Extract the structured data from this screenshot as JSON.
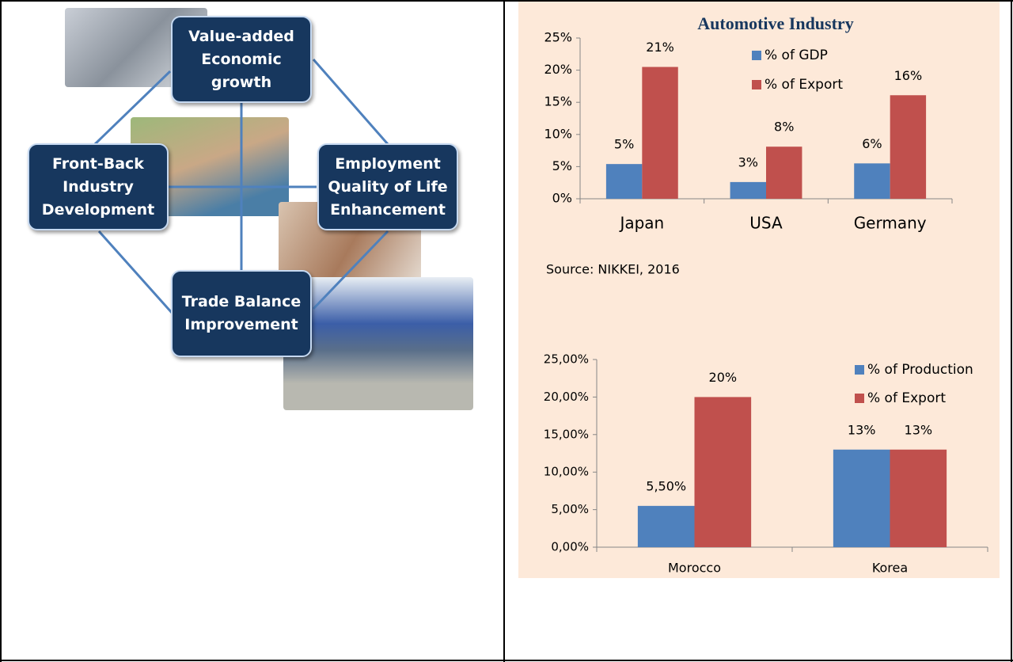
{
  "diagram": {
    "nodes": [
      {
        "lines": [
          "Value-added",
          "Economic",
          "growth"
        ]
      },
      {
        "lines": [
          "Front-Back",
          "Industry",
          "Development"
        ]
      },
      {
        "lines": [
          "Employment",
          "Quality of Life",
          "Enhancement"
        ]
      },
      {
        "lines": [
          "Trade Balance",
          "Improvement"
        ]
      }
    ]
  },
  "chart_data": [
    {
      "type": "bar",
      "title": "Automotive Industry",
      "categories": [
        "Japan",
        "USA",
        "Germany"
      ],
      "series": [
        {
          "name": "% of GDP",
          "color": "#4f81bd",
          "values": [
            5.4,
            2.6,
            5.5
          ],
          "value_labels": [
            "5%",
            "3%",
            "6%"
          ]
        },
        {
          "name": "% of Export",
          "color": "#c0504d",
          "values": [
            20.5,
            8.1,
            16.1
          ],
          "value_labels": [
            "21%",
            "8%",
            "16%"
          ]
        }
      ],
      "ylim": [
        0,
        25
      ],
      "yticks": [
        {
          "value": 0,
          "label": "0%"
        },
        {
          "value": 5,
          "label": "5%"
        },
        {
          "value": 10,
          "label": "10%"
        },
        {
          "value": 15,
          "label": "15%"
        },
        {
          "value": 20,
          "label": "20%"
        },
        {
          "value": 25,
          "label": "25%"
        }
      ],
      "legend": "top-right",
      "grid": false,
      "annotation": "Source:  NIKKEI, 2016"
    },
    {
      "type": "bar",
      "categories": [
        "Morocco",
        "Korea"
      ],
      "series": [
        {
          "name": "% of Production",
          "color": "#4f81bd",
          "values": [
            5.5,
            13
          ],
          "value_labels": [
            "5,50%",
            "13%"
          ]
        },
        {
          "name": "% of Export",
          "color": "#c0504d",
          "values": [
            20,
            13
          ],
          "value_labels": [
            "20%",
            "13%"
          ]
        }
      ],
      "ylim": [
        0,
        25
      ],
      "yticks": [
        {
          "value": 0,
          "label": "0,00%"
        },
        {
          "value": 5,
          "label": "5,00%"
        },
        {
          "value": 10,
          "label": "10,00%"
        },
        {
          "value": 15,
          "label": "15,00%"
        },
        {
          "value": 20,
          "label": "20,00%"
        },
        {
          "value": 25,
          "label": "25,00%"
        }
      ],
      "legend": "top-right",
      "grid": false
    }
  ]
}
